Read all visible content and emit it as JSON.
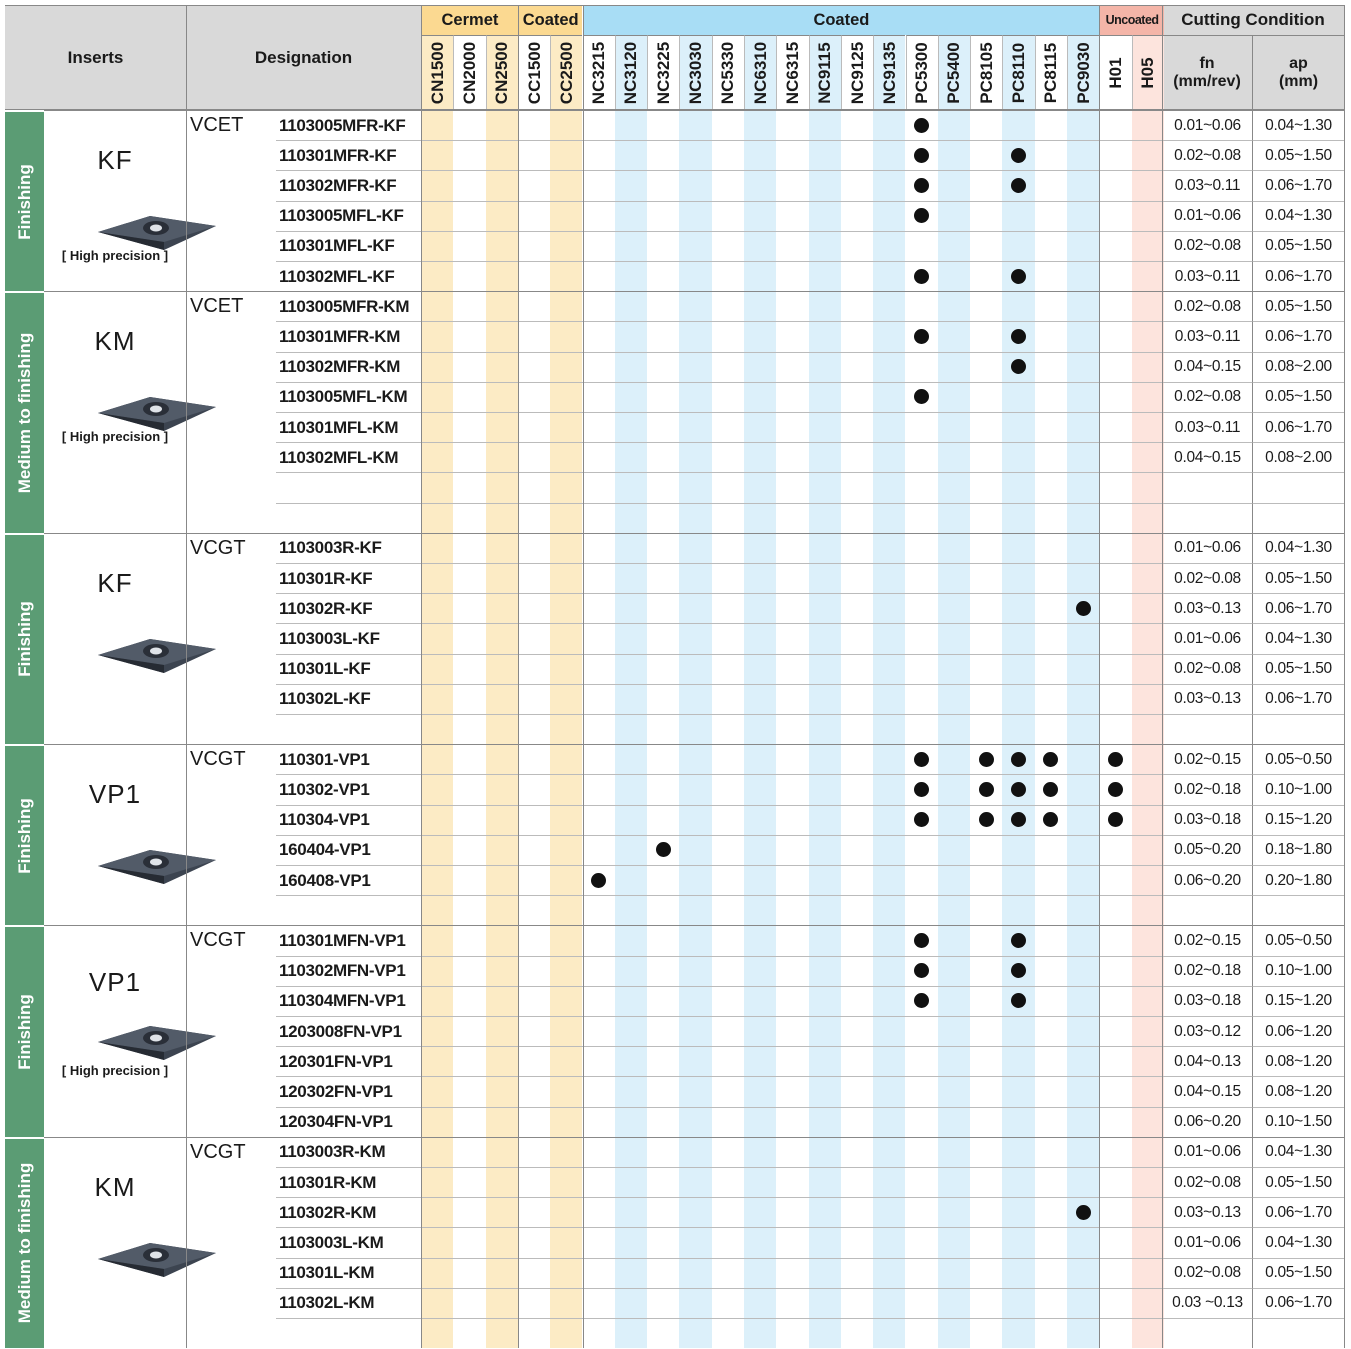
{
  "header": {
    "inserts": "Inserts",
    "designation": "Designation",
    "groups": [
      {
        "label": "Cermet",
        "color": "#fbd991"
      },
      {
        "label": "Coated",
        "color": "#fbd991"
      },
      {
        "label": "Coated",
        "color": "#a8ddf5"
      },
      {
        "label": "Uncoated",
        "color": "#f4b5a8"
      }
    ],
    "cutting": "Cutting Condition",
    "fn": "fn\n(mm/rev)",
    "ap": "ap\n(mm)"
  },
  "grades": [
    "CN1500",
    "CN2000",
    "CN2500",
    "CC1500",
    "CC2500",
    "NC3215",
    "NC3120",
    "NC3225",
    "NC3030",
    "NC5330",
    "NC6310",
    "NC6315",
    "NC9115",
    "NC9125",
    "NC9135",
    "PC5300",
    "PC5400",
    "PC8105",
    "PC8110",
    "PC8115",
    "PC9030",
    "H01",
    "H05"
  ],
  "colors": {
    "green": "#5b9c74",
    "cermet": "#fcebc5",
    "coated": "#dcf0fa",
    "uncoated": "#fde4dd",
    "gray": "#d9d9d9"
  },
  "sections": [
    {
      "mode": "Finishing",
      "insert": "KF",
      "note": "[ High precision ]",
      "type": "VCET",
      "icon": "vcet-kf-insert-icon",
      "rows": [
        {
          "d": "1103005MFR-KF",
          "dots": [
            15
          ],
          "fn": "0.01~0.06",
          "ap": "0.04~1.30"
        },
        {
          "d": "110301MFR-KF",
          "dots": [
            15,
            18
          ],
          "fn": "0.02~0.08",
          "ap": "0.05~1.50"
        },
        {
          "d": "110302MFR-KF",
          "dots": [
            15,
            18
          ],
          "fn": "0.03~0.11",
          "ap": "0.06~1.70"
        },
        {
          "d": "1103005MFL-KF",
          "dots": [
            15
          ],
          "fn": "0.01~0.06",
          "ap": "0.04~1.30"
        },
        {
          "d": "110301MFL-KF",
          "dots": [],
          "fn": "0.02~0.08",
          "ap": "0.05~1.50"
        },
        {
          "d": "110302MFL-KF",
          "dots": [
            15,
            18
          ],
          "fn": "0.03~0.11",
          "ap": "0.06~1.70"
        }
      ]
    },
    {
      "mode": "Medium to finishing",
      "insert": "KM",
      "note": "[ High precision ]",
      "type": "VCET",
      "icon": "vcet-km-insert-icon",
      "rows": [
        {
          "d": "1103005MFR-KM",
          "dots": [],
          "fn": "0.02~0.08",
          "ap": "0.05~1.50"
        },
        {
          "d": "110301MFR-KM",
          "dots": [
            15,
            18
          ],
          "fn": "0.03~0.11",
          "ap": "0.06~1.70"
        },
        {
          "d": "110302MFR-KM",
          "dots": [
            18
          ],
          "fn": "0.04~0.15",
          "ap": "0.08~2.00"
        },
        {
          "d": "1103005MFL-KM",
          "dots": [
            15
          ],
          "fn": "0.02~0.08",
          "ap": "0.05~1.50"
        },
        {
          "d": "110301MFL-KM",
          "dots": [],
          "fn": "0.03~0.11",
          "ap": "0.06~1.70"
        },
        {
          "d": "110302MFL-KM",
          "dots": [],
          "fn": "0.04~0.15",
          "ap": "0.08~2.00"
        },
        {
          "d": "",
          "dots": [],
          "fn": "",
          "ap": ""
        },
        {
          "d": "",
          "dots": [],
          "fn": "",
          "ap": ""
        }
      ]
    },
    {
      "mode": "Finishing",
      "insert": "KF",
      "note": "",
      "type": "VCGT",
      "icon": "vcgt-kf-insert-icon",
      "rows": [
        {
          "d": "1103003R-KF",
          "dots": [],
          "fn": "0.01~0.06",
          "ap": "0.04~1.30"
        },
        {
          "d": "110301R-KF",
          "dots": [],
          "fn": "0.02~0.08",
          "ap": "0.05~1.50"
        },
        {
          "d": "110302R-KF",
          "dots": [
            20
          ],
          "fn": "0.03~0.13",
          "ap": "0.06~1.70"
        },
        {
          "d": "1103003L-KF",
          "dots": [],
          "fn": "0.01~0.06",
          "ap": "0.04~1.30"
        },
        {
          "d": "110301L-KF",
          "dots": [],
          "fn": "0.02~0.08",
          "ap": "0.05~1.50"
        },
        {
          "d": "110302L-KF",
          "dots": [],
          "fn": "0.03~0.13",
          "ap": "0.06~1.70"
        },
        {
          "d": "",
          "dots": [],
          "fn": "",
          "ap": ""
        }
      ]
    },
    {
      "mode": "Finishing",
      "insert": "VP1",
      "note": "",
      "type": "VCGT",
      "icon": "vcgt-vp1-insert-icon",
      "rows": [
        {
          "d": "110301-VP1",
          "dots": [
            15,
            17,
            18,
            19,
            21
          ],
          "fn": "0.02~0.15",
          "ap": "0.05~0.50"
        },
        {
          "d": "110302-VP1",
          "dots": [
            15,
            17,
            18,
            19,
            21
          ],
          "fn": "0.02~0.18",
          "ap": "0.10~1.00"
        },
        {
          "d": "110304-VP1",
          "dots": [
            15,
            17,
            18,
            19,
            21
          ],
          "fn": "0.03~0.18",
          "ap": "0.15~1.20"
        },
        {
          "d": "160404-VP1",
          "dots": [
            7
          ],
          "fn": "0.05~0.20",
          "ap": "0.18~1.80"
        },
        {
          "d": "160408-VP1",
          "dots": [
            5
          ],
          "fn": "0.06~0.20",
          "ap": "0.20~1.80"
        },
        {
          "d": "",
          "dots": [],
          "fn": "",
          "ap": ""
        }
      ]
    },
    {
      "mode": "Finishing",
      "insert": "VP1",
      "note": "[ High precision ]",
      "type": "VCGT",
      "icon": "vcgt-vp1-fn-insert-icon",
      "rows": [
        {
          "d": "110301MFN-VP1",
          "dots": [
            15,
            18
          ],
          "fn": "0.02~0.15",
          "ap": "0.05~0.50"
        },
        {
          "d": "110302MFN-VP1",
          "dots": [
            15,
            18
          ],
          "fn": "0.02~0.18",
          "ap": "0.10~1.00"
        },
        {
          "d": "110304MFN-VP1",
          "dots": [
            15,
            18
          ],
          "fn": "0.03~0.18",
          "ap": "0.15~1.20"
        },
        {
          "d": "1203008FN-VP1",
          "dots": [],
          "fn": "0.03~0.12",
          "ap": "0.06~1.20"
        },
        {
          "d": "120301FN-VP1",
          "dots": [],
          "fn": "0.04~0.13",
          "ap": "0.08~1.20"
        },
        {
          "d": "120302FN-VP1",
          "dots": [],
          "fn": "0.04~0.15",
          "ap": "0.08~1.20"
        },
        {
          "d": "120304FN-VP1",
          "dots": [],
          "fn": "0.06~0.20",
          "ap": "0.10~1.50"
        }
      ]
    },
    {
      "mode": "Medium to finishing",
      "insert": "KM",
      "note": "",
      "type": "VCGT",
      "icon": "vcgt-km-insert-icon",
      "rows": [
        {
          "d": "1103003R-KM",
          "dots": [],
          "fn": "0.01~0.06",
          "ap": "0.04~1.30"
        },
        {
          "d": "110301R-KM",
          "dots": [],
          "fn": "0.02~0.08",
          "ap": "0.05~1.50"
        },
        {
          "d": "110302R-KM",
          "dots": [
            20
          ],
          "fn": "0.03~0.13",
          "ap": "0.06~1.70"
        },
        {
          "d": "1103003L-KM",
          "dots": [],
          "fn": "0.01~0.06",
          "ap": "0.04~1.30"
        },
        {
          "d": "110301L-KM",
          "dots": [],
          "fn": "0.02~0.08",
          "ap": "0.05~1.50"
        },
        {
          "d": "110302L-KM",
          "dots": [],
          "fn": "0.03 ~0.13",
          "ap": "0.06~1.70"
        },
        {
          "d": "",
          "dots": [],
          "fn": "",
          "ap": ""
        }
      ]
    }
  ]
}
